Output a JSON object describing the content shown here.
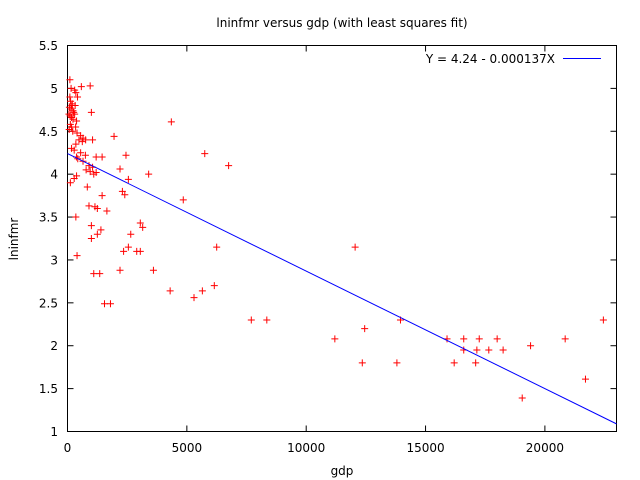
{
  "chart_data": {
    "type": "scatter",
    "title": "lninfmr versus gdp (with least squares fit)",
    "xlabel": "gdp",
    "ylabel": "lninfmr",
    "xlim": [
      0,
      23000
    ],
    "ylim": [
      1,
      5.5
    ],
    "xticks": [
      0,
      5000,
      10000,
      15000,
      20000
    ],
    "xtick_labels": [
      "0",
      "5000",
      "10000",
      "15000",
      "20000"
    ],
    "yticks": [
      1,
      1.5,
      2,
      2.5,
      3,
      3.5,
      4,
      4.5,
      5,
      5.5
    ],
    "ytick_labels": [
      "1",
      "1.5",
      "2",
      "2.5",
      "3",
      "3.5",
      "4",
      "4.5",
      "5",
      "5.5"
    ],
    "grid": false,
    "legend": "top-right",
    "colors": {
      "points": "#ff0000",
      "fit_line": "#0000ff"
    },
    "fit": {
      "label": "Y = 4.24 - 0.000137X",
      "intercept": 4.24,
      "slope": -0.000137
    },
    "series": [
      {
        "marker": "+",
        "points": [
          [
            100,
            5.1
          ],
          [
            150,
            5.0
          ],
          [
            300,
            4.98
          ],
          [
            350,
            4.95
          ],
          [
            420,
            4.9
          ],
          [
            100,
            4.9
          ],
          [
            130,
            4.85
          ],
          [
            200,
            4.82
          ],
          [
            180,
            4.8
          ],
          [
            320,
            4.8
          ],
          [
            80,
            4.78
          ],
          [
            150,
            4.76
          ],
          [
            230,
            4.74
          ],
          [
            260,
            4.72
          ],
          [
            300,
            4.7
          ],
          [
            60,
            4.7
          ],
          [
            110,
            4.68
          ],
          [
            170,
            4.66
          ],
          [
            230,
            4.64
          ],
          [
            380,
            4.62
          ],
          [
            120,
            4.58
          ],
          [
            170,
            4.55
          ],
          [
            340,
            4.55
          ],
          [
            70,
            4.52
          ],
          [
            220,
            4.5
          ],
          [
            400,
            4.48
          ],
          [
            550,
            4.45
          ],
          [
            650,
            4.42
          ],
          [
            480,
            4.4
          ],
          [
            620,
            4.38
          ],
          [
            350,
            4.35
          ],
          [
            170,
            4.3
          ],
          [
            280,
            4.28
          ],
          [
            550,
            4.25
          ],
          [
            750,
            4.22
          ],
          [
            380,
            4.2
          ],
          [
            430,
            4.18
          ],
          [
            650,
            4.15
          ],
          [
            1200,
            4.2
          ],
          [
            1450,
            4.2
          ],
          [
            900,
            4.1
          ],
          [
            1050,
            4.08
          ],
          [
            780,
            4.05
          ],
          [
            950,
            4.03
          ],
          [
            1200,
            4.02
          ],
          [
            1100,
            4.0
          ],
          [
            380,
            3.98
          ],
          [
            280,
            3.95
          ],
          [
            120,
            3.9
          ],
          [
            830,
            3.85
          ],
          [
            580,
            5.02
          ],
          [
            950,
            5.03
          ],
          [
            1000,
            4.72
          ],
          [
            760,
            4.4
          ],
          [
            1050,
            4.4
          ],
          [
            1950,
            4.44
          ],
          [
            2300,
            3.8
          ],
          [
            2400,
            3.76
          ],
          [
            2550,
            3.94
          ],
          [
            2450,
            4.22
          ],
          [
            2200,
            4.06
          ],
          [
            3400,
            4.0
          ],
          [
            4350,
            4.61
          ],
          [
            5750,
            4.24
          ],
          [
            6750,
            4.1
          ],
          [
            4850,
            3.7
          ],
          [
            1450,
            3.75
          ],
          [
            1650,
            3.57
          ],
          [
            1150,
            3.62
          ],
          [
            1250,
            3.6
          ],
          [
            900,
            3.63
          ],
          [
            350,
            3.5
          ],
          [
            1000,
            3.4
          ],
          [
            1400,
            3.35
          ],
          [
            1250,
            3.3
          ],
          [
            1000,
            3.25
          ],
          [
            3050,
            3.43
          ],
          [
            3150,
            3.38
          ],
          [
            2650,
            3.3
          ],
          [
            2550,
            3.15
          ],
          [
            2350,
            3.1
          ],
          [
            2900,
            3.1
          ],
          [
            3050,
            3.1
          ],
          [
            6250,
            3.15
          ],
          [
            12050,
            3.15
          ],
          [
            400,
            3.05
          ],
          [
            2200,
            2.88
          ],
          [
            3600,
            2.88
          ],
          [
            1100,
            2.84
          ],
          [
            1350,
            2.84
          ],
          [
            1550,
            2.49
          ],
          [
            1800,
            2.49
          ],
          [
            4300,
            2.64
          ],
          [
            5300,
            2.56
          ],
          [
            5650,
            2.64
          ],
          [
            6150,
            2.7
          ],
          [
            7700,
            2.3
          ],
          [
            8350,
            2.3
          ],
          [
            11200,
            2.08
          ],
          [
            12450,
            2.2
          ],
          [
            12350,
            1.8
          ],
          [
            13800,
            1.8
          ],
          [
            13950,
            2.3
          ],
          [
            15900,
            2.08
          ],
          [
            16600,
            2.08
          ],
          [
            16200,
            1.8
          ],
          [
            16600,
            1.95
          ],
          [
            17150,
            1.95
          ],
          [
            17250,
            2.08
          ],
          [
            17650,
            1.95
          ],
          [
            17100,
            1.8
          ],
          [
            18000,
            2.08
          ],
          [
            18250,
            1.95
          ],
          [
            19400,
            2.0
          ],
          [
            20850,
            2.08
          ],
          [
            19050,
            1.39
          ],
          [
            21700,
            1.61
          ],
          [
            22450,
            2.3
          ]
        ]
      }
    ]
  }
}
